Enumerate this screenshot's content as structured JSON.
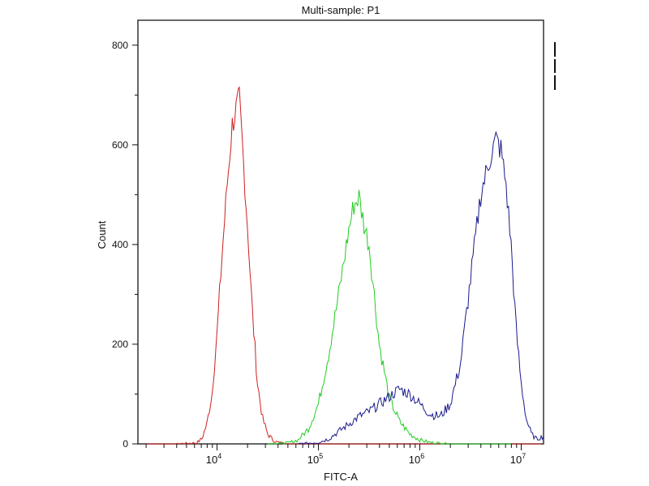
{
  "chart_data": {
    "type": "line",
    "title": "Multi-sample: P1",
    "xlabel": "FITC-A",
    "ylabel": "Count",
    "xscale": "log",
    "xlim_log10": [
      3.22,
      7.22
    ],
    "ylim": [
      0,
      850
    ],
    "x_ticks": [
      {
        "exp": 4,
        "label": "10",
        "sup": "4"
      },
      {
        "exp": 5,
        "label": "10",
        "sup": "5"
      },
      {
        "exp": 6,
        "label": "10",
        "sup": "6"
      },
      {
        "exp": 7,
        "label": "10",
        "sup": "7"
      }
    ],
    "y_ticks": [
      0,
      200,
      400,
      600,
      800
    ],
    "grid": false,
    "legend": "top-right (markers only)",
    "series": [
      {
        "name": "red",
        "color": "#cc2020",
        "points_log10x": [
          [
            3.3,
            0
          ],
          [
            3.6,
            0
          ],
          [
            3.8,
            2
          ],
          [
            3.85,
            10
          ],
          [
            3.9,
            40
          ],
          [
            3.95,
            100
          ],
          [
            4.0,
            220
          ],
          [
            4.05,
            380
          ],
          [
            4.1,
            520
          ],
          [
            4.15,
            640
          ],
          [
            4.2,
            680
          ],
          [
            4.22,
            690
          ],
          [
            4.25,
            600
          ],
          [
            4.3,
            440
          ],
          [
            4.35,
            260
          ],
          [
            4.4,
            120
          ],
          [
            4.45,
            50
          ],
          [
            4.5,
            20
          ],
          [
            4.55,
            8
          ],
          [
            4.6,
            3
          ],
          [
            4.7,
            0
          ],
          [
            7.2,
            0
          ]
        ]
      },
      {
        "name": "green",
        "color": "#22cc22",
        "points_log10x": [
          [
            4.5,
            0
          ],
          [
            4.7,
            2
          ],
          [
            4.8,
            8
          ],
          [
            4.9,
            30
          ],
          [
            5.0,
            80
          ],
          [
            5.1,
            180
          ],
          [
            5.2,
            300
          ],
          [
            5.3,
            430
          ],
          [
            5.35,
            480
          ],
          [
            5.4,
            495
          ],
          [
            5.45,
            440
          ],
          [
            5.5,
            400
          ],
          [
            5.55,
            300
          ],
          [
            5.6,
            200
          ],
          [
            5.7,
            90
          ],
          [
            5.8,
            45
          ],
          [
            5.9,
            20
          ],
          [
            6.0,
            8
          ],
          [
            6.1,
            3
          ],
          [
            6.3,
            0
          ],
          [
            6.9,
            0
          ]
        ]
      },
      {
        "name": "blue",
        "color": "#1a1a8a",
        "points_log10x": [
          [
            4.8,
            0
          ],
          [
            5.0,
            3
          ],
          [
            5.1,
            10
          ],
          [
            5.2,
            25
          ],
          [
            5.3,
            40
          ],
          [
            5.4,
            55
          ],
          [
            5.5,
            65
          ],
          [
            5.6,
            80
          ],
          [
            5.7,
            95
          ],
          [
            5.8,
            110
          ],
          [
            5.9,
            100
          ],
          [
            6.0,
            80
          ],
          [
            6.1,
            60
          ],
          [
            6.2,
            55
          ],
          [
            6.3,
            80
          ],
          [
            6.4,
            160
          ],
          [
            6.5,
            330
          ],
          [
            6.6,
            500
          ],
          [
            6.7,
            580
          ],
          [
            6.75,
            610
          ],
          [
            6.8,
            590
          ],
          [
            6.85,
            520
          ],
          [
            6.9,
            400
          ],
          [
            6.95,
            230
          ],
          [
            7.0,
            120
          ],
          [
            7.05,
            50
          ],
          [
            7.1,
            20
          ],
          [
            7.15,
            10
          ],
          [
            7.22,
            15
          ]
        ]
      }
    ]
  }
}
